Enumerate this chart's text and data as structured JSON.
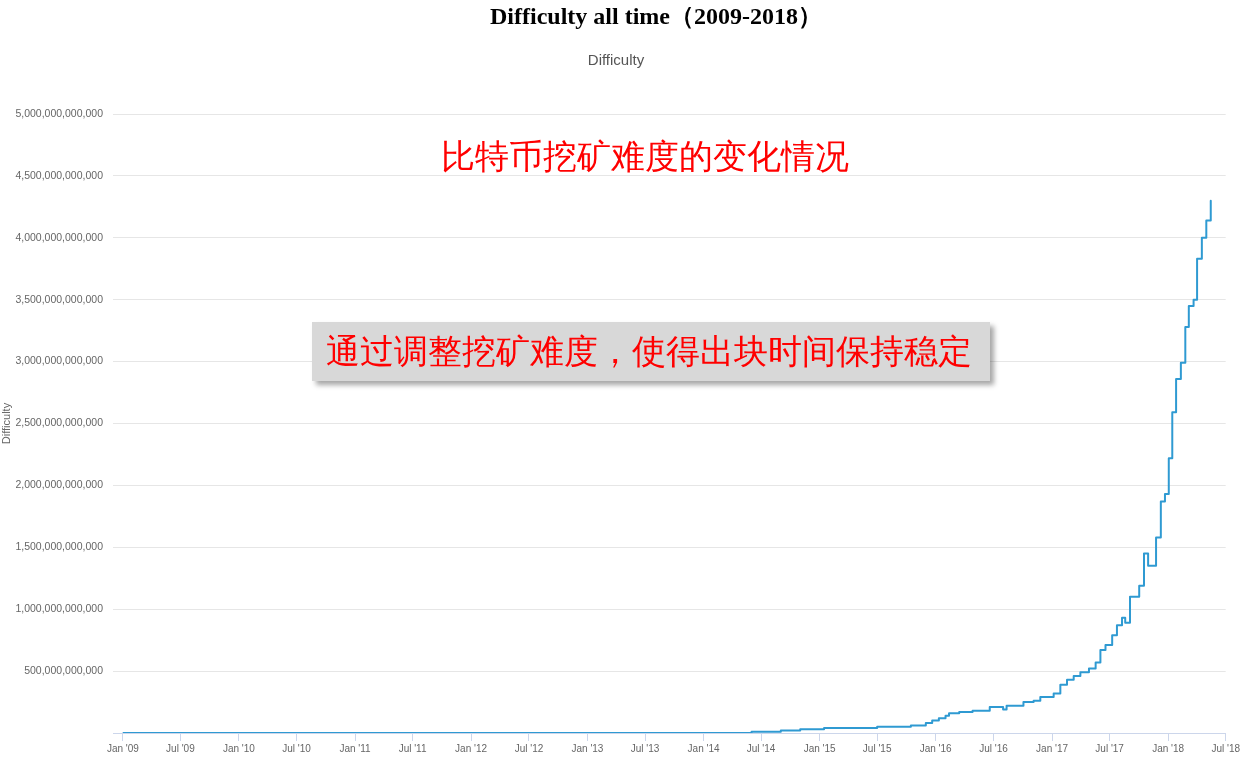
{
  "chart_data": {
    "type": "step",
    "title": "Difficulty all time（2009-2018）",
    "subtitle": "Difficulty",
    "ylabel": "Difficulty",
    "annotations": [
      "比特币挖矿难度的变化情况",
      "通过调整挖矿难度，使得出块时间保持稳定"
    ],
    "x": [
      "2009-01-03",
      "2013-07-01",
      "2014-06-01",
      "2014-09-01",
      "2014-11-01",
      "2015-01-15",
      "2015-07-01",
      "2015-10-15",
      "2015-12-01",
      "2015-12-21",
      "2016-01-11",
      "2016-02-01",
      "2016-02-12",
      "2016-03-15",
      "2016-04-26",
      "2016-06-19",
      "2016-07-31",
      "2016-08-11",
      "2016-10-03",
      "2016-11-04",
      "2016-11-25",
      "2017-01-06",
      "2017-01-27",
      "2017-02-17",
      "2017-03-10",
      "2017-03-31",
      "2017-04-27",
      "2017-05-18",
      "2017-06-02",
      "2017-06-18",
      "2017-07-09",
      "2017-07-24",
      "2017-08-09",
      "2017-08-19",
      "2017-09-03",
      "2017-10-02",
      "2017-10-17",
      "2017-10-30",
      "2017-11-24",
      "2017-12-09",
      "2017-12-22",
      "2018-01-03",
      "2018-01-14",
      "2018-01-26",
      "2018-02-10",
      "2018-02-24",
      "2018-03-07",
      "2018-03-22",
      "2018-04-02",
      "2018-04-17",
      "2018-05-01",
      "2018-05-15"
    ],
    "series": [
      {
        "color": "#2f9ad2",
        "values": [
          0,
          0,
          10000000000,
          20000000000,
          30000000000,
          40000000000,
          50000000000,
          60000000000,
          80000000000,
          100000000000,
          120000000000,
          140000000000,
          160000000000,
          170000000000,
          180000000000,
          210000000000,
          190000000000,
          220000000000,
          250000000000,
          260000000000,
          290000000000,
          320000000000,
          390000000000,
          430000000000,
          460000000000,
          490000000000,
          520000000000,
          570000000000,
          670000000000,
          710000000000,
          790000000000,
          870000000000,
          930000000000,
          890000000000,
          1100000000000,
          1190000000000,
          1450000000000,
          1350000000000,
          1580000000000,
          1870000000000,
          1930000000000,
          2220000000000,
          2590000000000,
          2860000000000,
          2990000000000,
          3280000000000,
          3450000000000,
          3500000000000,
          3830000000000,
          4000000000000,
          4140000000000,
          4300000000000
        ]
      }
    ],
    "xlim": [
      "2008-12-01",
      "2018-07-01"
    ],
    "xticks": [
      {
        "value": "2009-01",
        "label": "Jan '09"
      },
      {
        "value": "2009-07",
        "label": "Jul '09"
      },
      {
        "value": "2010-01",
        "label": "Jan '10"
      },
      {
        "value": "2010-07",
        "label": "Jul '10"
      },
      {
        "value": "2011-01",
        "label": "Jan '11"
      },
      {
        "value": "2011-07",
        "label": "Jul '11"
      },
      {
        "value": "2012-01",
        "label": "Jan '12"
      },
      {
        "value": "2012-07",
        "label": "Jul '12"
      },
      {
        "value": "2013-01",
        "label": "Jan '13"
      },
      {
        "value": "2013-07",
        "label": "Jul '13"
      },
      {
        "value": "2014-01",
        "label": "Jan '14"
      },
      {
        "value": "2014-07",
        "label": "Jul '14"
      },
      {
        "value": "2015-01",
        "label": "Jan '15"
      },
      {
        "value": "2015-07",
        "label": "Jul '15"
      },
      {
        "value": "2016-01",
        "label": "Jan '16"
      },
      {
        "value": "2016-07",
        "label": "Jul '16"
      },
      {
        "value": "2017-01",
        "label": "Jan '17"
      },
      {
        "value": "2017-07",
        "label": "Jul '17"
      },
      {
        "value": "2018-01",
        "label": "Jan '18"
      },
      {
        "value": "2018-07",
        "label": "Jul '18"
      }
    ],
    "ylim": [
      0,
      5000000000000
    ],
    "yticks": [
      {
        "value": 0,
        "label": null
      },
      {
        "value": 500000000000,
        "label": "500,000,000,000"
      },
      {
        "value": 1000000000000,
        "label": "1,000,000,000,000"
      },
      {
        "value": 1500000000000,
        "label": "1,500,000,000,000"
      },
      {
        "value": 2000000000000,
        "label": "2,000,000,000,000"
      },
      {
        "value": 2500000000000,
        "label": "2,500,000,000,000"
      },
      {
        "value": 3000000000000,
        "label": "3,000,000,000,000"
      },
      {
        "value": 3500000000000,
        "label": "3,500,000,000,000"
      },
      {
        "value": 4000000000000,
        "label": "4,000,000,000,000"
      },
      {
        "value": 4500000000000,
        "label": "4,500,000,000,000"
      },
      {
        "value": 5000000000000,
        "label": "5,000,000,000,000"
      }
    ],
    "grid": "y"
  }
}
